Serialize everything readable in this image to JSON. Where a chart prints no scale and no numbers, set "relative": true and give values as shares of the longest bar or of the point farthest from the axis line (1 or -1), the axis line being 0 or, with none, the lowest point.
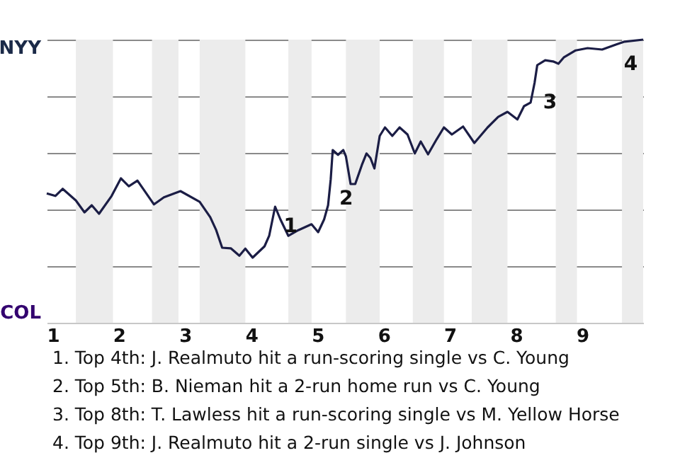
{
  "chart_data": {
    "type": "line",
    "relative": true,
    "x": [
      0.91,
      1.04,
      1.15,
      1.35,
      1.48,
      1.59,
      1.7,
      1.89,
      2.03,
      2.15,
      2.28,
      2.53,
      2.68,
      2.93,
      3.22,
      3.38,
      3.47,
      3.56,
      3.69,
      3.82,
      3.91,
      4.02,
      4.2,
      4.27,
      4.36,
      4.44,
      4.56,
      4.71,
      4.91,
      5.01,
      5.1,
      5.16,
      5.2,
      5.23,
      5.31,
      5.39,
      5.43,
      5.5,
      5.57,
      5.67,
      5.74,
      5.8,
      5.86,
      5.94,
      6.02,
      6.13,
      6.24,
      6.36,
      6.47,
      6.56,
      6.67,
      6.8,
      6.91,
      7.03,
      7.2,
      7.37,
      7.57,
      7.73,
      7.87,
      8.02,
      8.12,
      8.22,
      8.28,
      8.32,
      8.44,
      8.56,
      8.64,
      8.72,
      8.9,
      9.08,
      9.3,
      9.5,
      9.64,
      9.92
    ],
    "series": [
      {
        "color": "#1b1d45",
        "values": [
          0.457,
          0.448,
          0.473,
          0.432,
          0.39,
          0.415,
          0.385,
          0.448,
          0.51,
          0.482,
          0.502,
          0.418,
          0.443,
          0.465,
          0.427,
          0.373,
          0.327,
          0.265,
          0.263,
          0.237,
          0.262,
          0.23,
          0.27,
          0.307,
          0.41,
          0.365,
          0.307,
          0.327,
          0.348,
          0.32,
          0.365,
          0.415,
          0.507,
          0.61,
          0.593,
          0.61,
          0.587,
          0.49,
          0.49,
          0.557,
          0.598,
          0.582,
          0.545,
          0.66,
          0.69,
          0.66,
          0.69,
          0.665,
          0.598,
          0.64,
          0.595,
          0.648,
          0.69,
          0.665,
          0.693,
          0.635,
          0.69,
          0.727,
          0.745,
          0.718,
          0.765,
          0.778,
          0.848,
          0.91,
          0.927,
          0.923,
          0.915,
          0.937,
          0.962,
          0.97,
          0.965,
          0.982,
          0.993,
          1
        ]
      }
    ],
    "xlim": [
      0.91,
      9.92
    ],
    "xticks": [
      1,
      2,
      3,
      4,
      5,
      6,
      7,
      8,
      9
    ],
    "grid": "y",
    "bands": [
      {
        "axis": "x",
        "from": 1.35,
        "to": 1.91,
        "color": "#ececec"
      },
      {
        "axis": "x",
        "from": 2.5,
        "to": 2.9,
        "color": "#ececec"
      },
      {
        "axis": "x",
        "from": 3.22,
        "to": 3.91,
        "color": "#ececec"
      },
      {
        "axis": "x",
        "from": 4.56,
        "to": 4.91,
        "color": "#ececec"
      },
      {
        "axis": "x",
        "from": 5.43,
        "to": 5.94,
        "color": "#ececec"
      },
      {
        "axis": "x",
        "from": 6.44,
        "to": 6.91,
        "color": "#ececec"
      },
      {
        "axis": "x",
        "from": 7.33,
        "to": 7.87,
        "color": "#ececec"
      },
      {
        "axis": "x",
        "from": 8.6,
        "to": 8.92,
        "color": "#ececec"
      },
      {
        "axis": "x",
        "from": 9.6,
        "to": 9.92,
        "color": "#ececec"
      }
    ],
    "annotations": [
      {
        "text": "1",
        "x": 4.36,
        "y": 0.41
      },
      {
        "text": "2",
        "x": 5.2,
        "y": 0.507
      },
      {
        "text": "3",
        "x": 8.28,
        "y": 0.848
      },
      {
        "text": "4",
        "x": 9.5,
        "y": 0.982
      },
      "NYY",
      "COL",
      "1. Top 4th: J. Realmuto hit a run-scoring single vs C. Young",
      "2. Top 5th: B. Nieman hit a 2-run home run vs C. Young",
      "3. Top 8th: T. Lawless hit a run-scoring single vs M. Yellow Horse",
      "4. Top 9th: J. Realmuto hit a 2-run single vs J. Johnson"
    ]
  }
}
